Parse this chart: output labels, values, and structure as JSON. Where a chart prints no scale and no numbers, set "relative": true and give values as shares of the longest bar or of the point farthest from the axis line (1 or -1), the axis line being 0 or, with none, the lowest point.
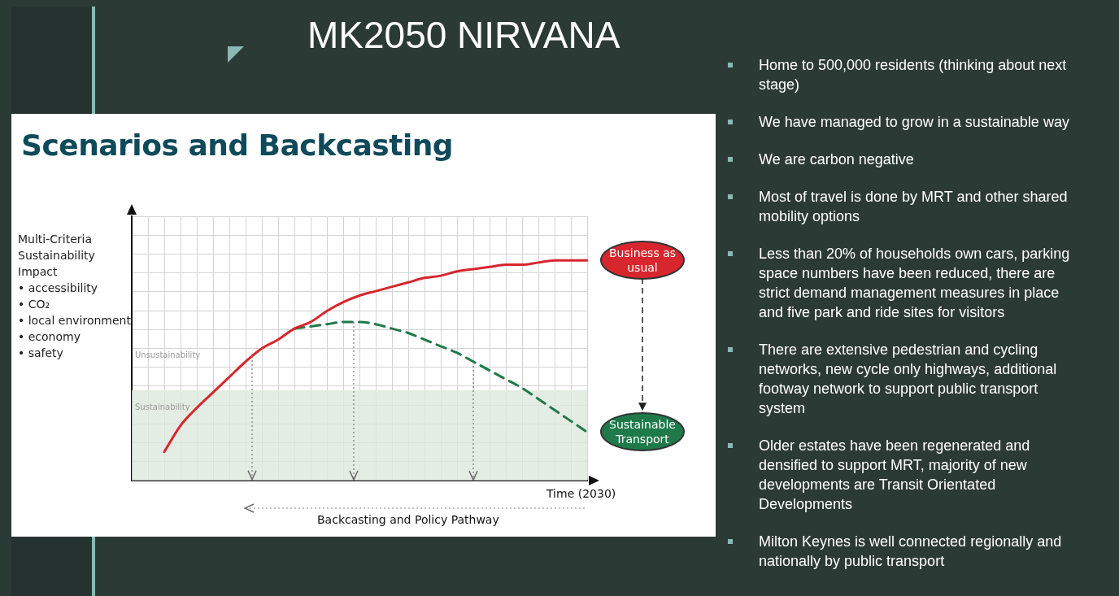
{
  "chart_data": {
    "type": "line",
    "title": "MK2050 NIRVANA",
    "subtitle": "Scenarios and Backcasting",
    "ylabel": "Multi-Criteria\nSustainability\nImpact\n• accessibility\n• CO₂\n• local environment\n• economy\n• safety",
    "xlabel": "Time (2030)",
    "relative": true,
    "tick_labels": false,
    "grid": true,
    "categories": [
      null,
      null,
      null,
      null,
      null,
      null,
      null,
      null,
      null,
      null,
      null,
      null,
      null,
      null,
      null,
      null,
      null,
      null,
      null,
      null,
      null,
      null,
      null,
      null,
      null,
      null,
      null,
      null,
      null
    ],
    "series": [
      {
        "name": "Business as usual",
        "color": "#d7262e",
        "line_style": "solid",
        "values": [
          null,
          null,
          0.13,
          0.25,
          0.33,
          0.4,
          0.47,
          0.54,
          0.6,
          0.64,
          0.69,
          0.72,
          0.77,
          0.81,
          0.84,
          0.86,
          0.88,
          0.9,
          0.92,
          0.93,
          0.95,
          0.96,
          0.97,
          0.98,
          0.98,
          0.99,
          1.0,
          1.0,
          1.0
        ]
      },
      {
        "name": "Sustainable Transport",
        "color": "#1e7a4a",
        "line_style": "dashed",
        "values": [
          null,
          null,
          null,
          null,
          null,
          null,
          null,
          null,
          null,
          null,
          0.69,
          0.7,
          0.71,
          0.72,
          0.72,
          0.71,
          0.69,
          0.67,
          0.64,
          0.61,
          0.58,
          0.54,
          0.5,
          0.46,
          0.42,
          0.37,
          0.32,
          0.27,
          0.22
        ]
      }
    ],
    "bands": [
      {
        "axis": "y",
        "from": 0,
        "to": 0.41,
        "label": "Sustainability",
        "color": "#dde8dd"
      }
    ],
    "annotations": [
      "Unsustainability",
      "Backcasting and Policy Pathway",
      "Home to 500,000 residents (thinking about next stage)",
      "We have managed to grow in a sustainable way",
      "We are carbon negative",
      "Most of travel is done by MRT and other shared mobility options",
      "Less than 20% of households own cars, parking space numbers have been reduced, there are strict demand management measures in place and five park and ride sites for visitors",
      "There are extensive pedestrian and cycling networks, new cycle only highways, additional footway network to support public transport system",
      "Older estates have been regenerated and densified to support MRT, majority of new developments are Transit Orientated Developments",
      "Milton Keynes is well connected regionally and nationally by public transport"
    ]
  }
}
